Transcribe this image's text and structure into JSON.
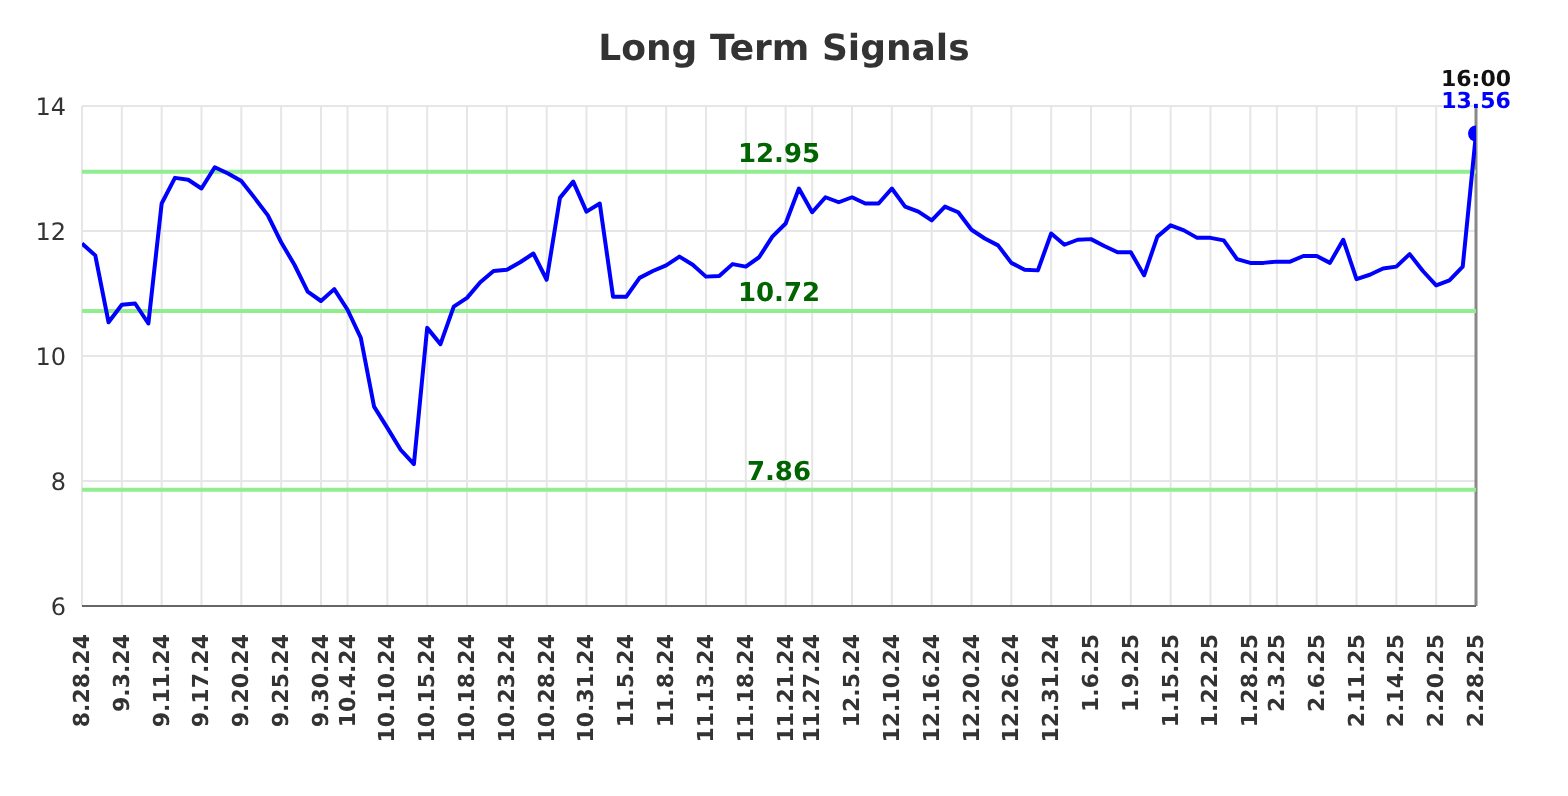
{
  "chart_data": {
    "type": "line",
    "title": "Long Term Signals",
    "categories": [
      "8.28.24",
      null,
      null,
      "9.3.24",
      null,
      null,
      "9.11.24",
      null,
      null,
      "9.17.24",
      null,
      null,
      "9.20.24",
      null,
      null,
      "9.25.24",
      null,
      null,
      "9.30.24",
      null,
      "10.4.24",
      null,
      null,
      "10.10.24",
      null,
      null,
      "10.15.24",
      null,
      null,
      "10.18.24",
      null,
      null,
      "10.23.24",
      null,
      null,
      "10.28.24",
      null,
      null,
      "10.31.24",
      null,
      null,
      "11.5.24",
      null,
      null,
      "11.8.24",
      null,
      null,
      "11.13.24",
      null,
      null,
      "11.18.24",
      null,
      null,
      "11.21.24",
      null,
      "11.27.24",
      null,
      null,
      "12.5.24",
      null,
      null,
      "12.10.24",
      null,
      null,
      "12.16.24",
      null,
      null,
      "12.20.24",
      null,
      null,
      "12.26.24",
      null,
      null,
      "12.31.24",
      null,
      null,
      "1.6.25",
      null,
      null,
      "1.9.25",
      null,
      null,
      "1.15.25",
      null,
      null,
      "1.22.25",
      null,
      null,
      "1.28.25",
      null,
      "2.3.25",
      null,
      null,
      "2.6.25",
      null,
      null,
      "2.11.25",
      null,
      null,
      "2.14.25",
      null,
      null,
      "2.20.25",
      null,
      null,
      "2.28.25"
    ],
    "series": [
      {
        "color": "#0000ff",
        "marker": "none",
        "values": [
          11.8,
          11.61,
          10.54,
          10.82,
          10.84,
          10.52,
          12.44,
          12.85,
          12.82,
          12.68,
          13.02,
          12.92,
          12.8,
          12.53,
          12.25,
          11.82,
          11.46,
          11.03,
          10.88,
          11.07,
          10.74,
          10.29,
          9.19,
          8.85,
          8.5,
          8.27,
          10.45,
          10.19,
          10.79,
          10.93,
          11.18,
          11.36,
          11.38,
          11.5,
          11.64,
          11.22,
          12.53,
          12.79,
          12.31,
          12.44,
          10.95,
          10.95,
          11.25,
          11.36,
          11.45,
          11.59,
          11.46,
          11.27,
          11.28,
          11.47,
          11.43,
          11.58,
          11.91,
          12.12,
          12.68,
          12.3,
          12.54,
          12.46,
          12.54,
          12.44,
          12.44,
          12.68,
          12.39,
          12.31,
          12.17,
          12.39,
          12.3,
          12.02,
          11.88,
          11.77,
          11.49,
          11.38,
          11.37,
          11.96,
          11.78,
          11.86,
          11.87,
          11.76,
          11.66,
          11.66,
          11.29,
          11.91,
          12.09,
          12.01,
          11.89,
          11.89,
          11.85,
          11.55,
          11.49,
          11.49,
          11.51,
          11.51,
          11.6,
          11.6,
          11.49,
          11.86,
          11.23,
          11.3,
          11.4,
          11.43,
          11.63,
          11.36,
          11.13,
          11.21,
          11.43,
          13.56
        ]
      },
      {
        "type": "scatter",
        "color": "#0000ff",
        "marker": "circle",
        "x": [
          "2.28.25"
        ],
        "values": [
          13.56
        ],
        "value_labels": [
          "13.56"
        ]
      }
    ],
    "ylim": [
      6,
      14
    ],
    "yticks": [
      6,
      8,
      10,
      12,
      14
    ],
    "grid": true,
    "line_style": "solid",
    "ref_lines": [
      {
        "axis": "y",
        "value": 12.95,
        "label": "12.95",
        "color": "#90ee90"
      },
      {
        "axis": "y",
        "value": 10.72,
        "label": "10.72",
        "color": "#90ee90"
      },
      {
        "axis": "y",
        "value": 7.86,
        "label": "7.86",
        "color": "#90ee90"
      }
    ],
    "annotations": [
      {
        "text": "16:00",
        "x": "2.28.25",
        "y": 13.56
      }
    ]
  }
}
